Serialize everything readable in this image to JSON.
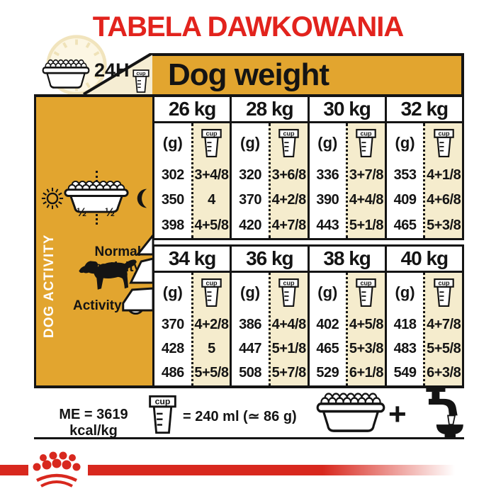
{
  "title": "TABELA DAWKOWANIA",
  "header": {
    "hours_label": "24H",
    "dog_weight_label": "Dog weight",
    "cup_label": "cup"
  },
  "sidebar": {
    "vertical_label": "DOG ACTIVITY",
    "bowl_half_left": "½",
    "bowl_half_right": "½",
    "normal_activity_label": "Normal activity",
    "activity_label": "Activity",
    "activity_plus": "+"
  },
  "table": {
    "grams_unit_label": "(g)",
    "cup_label": "cup",
    "groups": [
      {
        "columns": [
          {
            "weight": "26 kg",
            "grams": [
              "302",
              "350",
              "398"
            ],
            "cups": [
              "3+4/8",
              "4",
              "4+5/8"
            ]
          },
          {
            "weight": "28 kg",
            "grams": [
              "320",
              "370",
              "420"
            ],
            "cups": [
              "3+6/8",
              "4+2/8",
              "4+7/8"
            ]
          },
          {
            "weight": "30 kg",
            "grams": [
              "336",
              "390",
              "443"
            ],
            "cups": [
              "3+7/8",
              "4+4/8",
              "5+1/8"
            ]
          },
          {
            "weight": "32 kg",
            "grams": [
              "353",
              "409",
              "465"
            ],
            "cups": [
              "4+1/8",
              "4+6/8",
              "5+3/8"
            ]
          }
        ]
      },
      {
        "columns": [
          {
            "weight": "34 kg",
            "grams": [
              "370",
              "428",
              "486"
            ],
            "cups": [
              "4+2/8",
              "5",
              "5+5/8"
            ]
          },
          {
            "weight": "36 kg",
            "grams": [
              "386",
              "447",
              "508"
            ],
            "cups": [
              "4+4/8",
              "5+1/8",
              "5+7/8"
            ]
          },
          {
            "weight": "38 kg",
            "grams": [
              "402",
              "465",
              "529"
            ],
            "cups": [
              "4+5/8",
              "5+3/8",
              "6+1/8"
            ]
          },
          {
            "weight": "40 kg",
            "grams": [
              "418",
              "483",
              "549"
            ],
            "cups": [
              "4+7/8",
              "5+5/8",
              "6+3/8"
            ]
          }
        ]
      }
    ]
  },
  "footer": {
    "me_label": "ME = 3619 kcal/kg",
    "cup_label": "cup",
    "cup_equivalence_label": "= 240 ml (≃ 86 g)",
    "plus_label": "+"
  },
  "colors": {
    "accent_red": "#E2231D",
    "bar_red": "#D8281E",
    "mustard": "#E2A52F",
    "cream": "#F5ECCD",
    "ink": "#141414"
  }
}
